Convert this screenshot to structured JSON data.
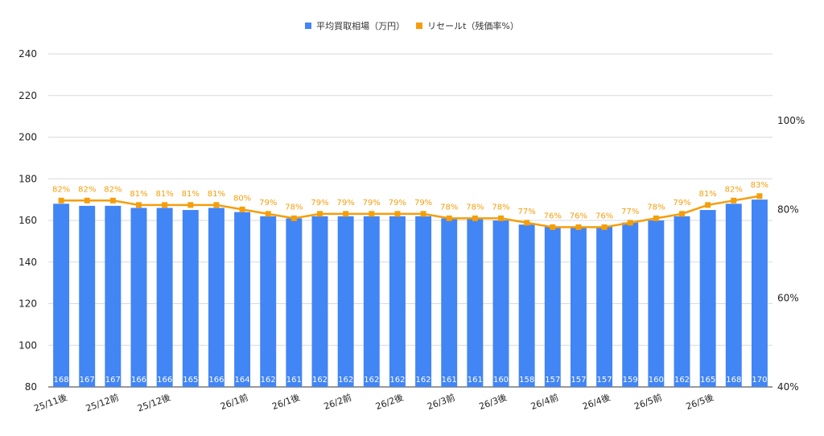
{
  "legend": {
    "bar_label": "平均買取相場（万円）",
    "line_label": "リセールt（残価率%）",
    "bar_color": "#4285f4",
    "line_color": "#f59e0b"
  },
  "chart_data": {
    "type": "bar",
    "categories": [
      "25/11後",
      "25/12前",
      "25/12前",
      "25/12後",
      "25/12後",
      "25/12後",
      "25/12後",
      "26/1前",
      "26/1前",
      "26/1後",
      "26/1後",
      "26/2前",
      "26/2前",
      "26/2後",
      "26/2後",
      "26/3前",
      "26/3前",
      "26/3後",
      "26/3後",
      "26/4前",
      "26/4前",
      "26/4後",
      "26/4後",
      "26/5前",
      "26/5前",
      "26/5後",
      "26/5後",
      "26/5後"
    ],
    "xtick_labels": [
      "25/11後",
      "25/12前",
      "25/12後",
      "26/1前",
      "26/1後",
      "26/2前",
      "26/2後",
      "26/3前",
      "26/3後",
      "26/4前",
      "26/4後",
      "26/5前",
      "26/5後"
    ],
    "xtick_index": [
      0,
      2,
      4,
      7,
      9,
      11,
      13,
      15,
      17,
      19,
      21,
      23,
      25
    ],
    "series": [
      {
        "name": "平均買取相場（万円）",
        "axis": "left",
        "type": "bar",
        "values": [
          168,
          167,
          167,
          166,
          166,
          165,
          166,
          164,
          162,
          161,
          162,
          162,
          162,
          162,
          162,
          161,
          161,
          160,
          158,
          157,
          157,
          157,
          159,
          160,
          162,
          165,
          168,
          170
        ]
      },
      {
        "name": "リセールt（残価率%）",
        "axis": "right",
        "type": "line",
        "values": [
          82,
          82,
          82,
          81,
          81,
          81,
          81,
          80,
          79,
          78,
          79,
          79,
          79,
          79,
          79,
          78,
          78,
          78,
          77,
          76,
          76,
          76,
          77,
          78,
          79,
          81,
          82,
          83
        ]
      }
    ],
    "left_axis": {
      "ylim": [
        80,
        240
      ],
      "ticks": [
        80,
        100,
        120,
        140,
        160,
        180,
        200,
        220,
        240
      ]
    },
    "right_axis": {
      "ylim": [
        40,
        100
      ],
      "ticks": [
        "40%",
        "60%",
        "80%",
        "100%"
      ]
    },
    "grid": true,
    "legend_position": "top-center"
  }
}
